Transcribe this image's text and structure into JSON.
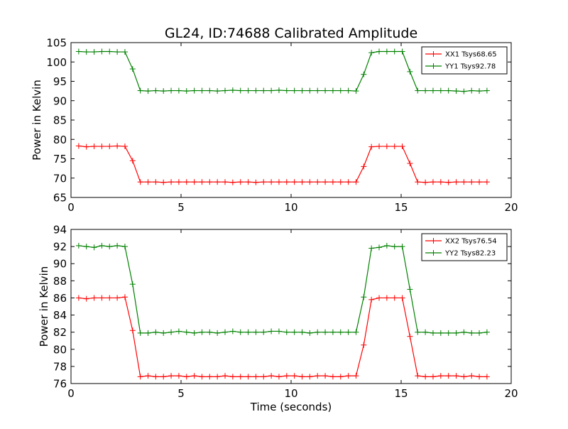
{
  "title": "GL24, ID:74688 Calibrated Amplitude",
  "colors": {
    "xx": "#ff0000",
    "yy": "#008000"
  },
  "chart_data": [
    {
      "type": "line",
      "xlabel": "",
      "ylabel": "Power in Kelvin",
      "xlim": [
        0,
        20
      ],
      "ylim": [
        65,
        105
      ],
      "xticks": [
        "0",
        "5",
        "10",
        "15",
        "20"
      ],
      "yticks": [
        "65",
        "70",
        "75",
        "80",
        "85",
        "90",
        "95",
        "100",
        "105"
      ],
      "xtick_values": [
        0,
        5,
        10,
        15,
        20
      ],
      "ytick_values": [
        65,
        70,
        75,
        80,
        85,
        90,
        95,
        100,
        105
      ],
      "legend_position": "top-right",
      "grid": false,
      "x": [
        0.35,
        0.7,
        1.05,
        1.4,
        1.75,
        2.1,
        2.45,
        2.8,
        3.15,
        3.5,
        3.85,
        4.2,
        4.55,
        4.9,
        5.25,
        5.6,
        5.95,
        6.3,
        6.65,
        7.0,
        7.35,
        7.7,
        8.05,
        8.4,
        8.75,
        9.1,
        9.45,
        9.8,
        10.15,
        10.5,
        10.85,
        11.2,
        11.55,
        11.9,
        12.25,
        12.6,
        12.95,
        13.3,
        13.65,
        14.0,
        14.35,
        14.7,
        15.05,
        15.4,
        15.75,
        16.1,
        16.45,
        16.8,
        17.15,
        17.5,
        17.85,
        18.2,
        18.55,
        18.9
      ],
      "series": [
        {
          "name": "XX1 Tsys68.65",
          "color": "#ff0000",
          "values": [
            78.3,
            78.1,
            78.2,
            78.2,
            78.2,
            78.3,
            78.2,
            74.5,
            69.0,
            69.0,
            69.0,
            68.9,
            69.0,
            69.0,
            69.0,
            69.0,
            69.0,
            69.0,
            69.0,
            69.0,
            68.9,
            69.0,
            69.0,
            68.9,
            69.0,
            69.0,
            69.0,
            69.0,
            69.0,
            69.0,
            69.0,
            69.0,
            69.0,
            69.0,
            69.0,
            69.0,
            69.0,
            73.0,
            78.1,
            78.2,
            78.2,
            78.2,
            78.2,
            73.8,
            69.0,
            68.9,
            69.0,
            69.0,
            68.9,
            69.0,
            69.0,
            69.0,
            69.0,
            69.0
          ]
        },
        {
          "name": "YY1 Tsys92.78",
          "color": "#008000",
          "values": [
            102.7,
            102.6,
            102.6,
            102.7,
            102.7,
            102.6,
            102.6,
            98.2,
            92.6,
            92.5,
            92.6,
            92.5,
            92.6,
            92.6,
            92.5,
            92.6,
            92.6,
            92.6,
            92.5,
            92.6,
            92.7,
            92.6,
            92.6,
            92.6,
            92.6,
            92.6,
            92.7,
            92.6,
            92.6,
            92.6,
            92.6,
            92.6,
            92.6,
            92.6,
            92.6,
            92.6,
            92.5,
            96.8,
            102.4,
            102.7,
            102.7,
            102.7,
            102.7,
            97.5,
            92.6,
            92.6,
            92.6,
            92.6,
            92.6,
            92.5,
            92.4,
            92.6,
            92.5,
            92.6
          ]
        }
      ]
    },
    {
      "type": "line",
      "xlabel": "Time (seconds)",
      "ylabel": "Power in Kelvin",
      "xlim": [
        0,
        20
      ],
      "ylim": [
        76,
        94
      ],
      "xticks": [
        "0",
        "5",
        "10",
        "15",
        "20"
      ],
      "yticks": [
        "76",
        "78",
        "80",
        "82",
        "84",
        "86",
        "88",
        "90",
        "92",
        "94"
      ],
      "xtick_values": [
        0,
        5,
        10,
        15,
        20
      ],
      "ytick_values": [
        76,
        78,
        80,
        82,
        84,
        86,
        88,
        90,
        92,
        94
      ],
      "legend_position": "top-right",
      "grid": false,
      "x": [
        0.35,
        0.7,
        1.05,
        1.4,
        1.75,
        2.1,
        2.45,
        2.8,
        3.15,
        3.5,
        3.85,
        4.2,
        4.55,
        4.9,
        5.25,
        5.6,
        5.95,
        6.3,
        6.65,
        7.0,
        7.35,
        7.7,
        8.05,
        8.4,
        8.75,
        9.1,
        9.45,
        9.8,
        10.15,
        10.5,
        10.85,
        11.2,
        11.55,
        11.9,
        12.25,
        12.6,
        12.95,
        13.3,
        13.65,
        14.0,
        14.35,
        14.7,
        15.05,
        15.4,
        15.75,
        16.1,
        16.45,
        16.8,
        17.15,
        17.5,
        17.85,
        18.2,
        18.55,
        18.9
      ],
      "series": [
        {
          "name": "XX2 Tsys76.54",
          "color": "#ff0000",
          "values": [
            86.0,
            85.9,
            86.0,
            86.0,
            86.0,
            86.0,
            86.1,
            82.2,
            76.8,
            76.9,
            76.8,
            76.8,
            76.9,
            76.9,
            76.8,
            76.9,
            76.8,
            76.8,
            76.8,
            76.9,
            76.8,
            76.8,
            76.8,
            76.8,
            76.8,
            76.9,
            76.8,
            76.9,
            76.9,
            76.8,
            76.8,
            76.9,
            76.9,
            76.8,
            76.8,
            76.9,
            76.9,
            80.5,
            85.8,
            86.0,
            86.0,
            86.0,
            86.0,
            81.5,
            76.9,
            76.8,
            76.8,
            76.9,
            76.9,
            76.9,
            76.8,
            76.9,
            76.8,
            76.8
          ]
        },
        {
          "name": "YY2 Tsys82.23",
          "color": "#008000",
          "values": [
            92.1,
            92.0,
            91.9,
            92.1,
            92.0,
            92.1,
            92.0,
            87.6,
            81.9,
            81.9,
            82.0,
            81.9,
            82.0,
            82.1,
            82.0,
            81.9,
            82.0,
            82.0,
            81.9,
            82.0,
            82.1,
            82.0,
            82.0,
            82.0,
            82.0,
            82.1,
            82.1,
            82.0,
            82.0,
            82.0,
            81.9,
            82.0,
            82.0,
            82.0,
            82.0,
            82.0,
            82.0,
            86.1,
            91.8,
            91.9,
            92.1,
            92.0,
            92.0,
            87.0,
            82.0,
            82.0,
            81.9,
            81.9,
            81.9,
            81.9,
            82.0,
            81.9,
            81.9,
            82.0
          ]
        }
      ]
    }
  ]
}
